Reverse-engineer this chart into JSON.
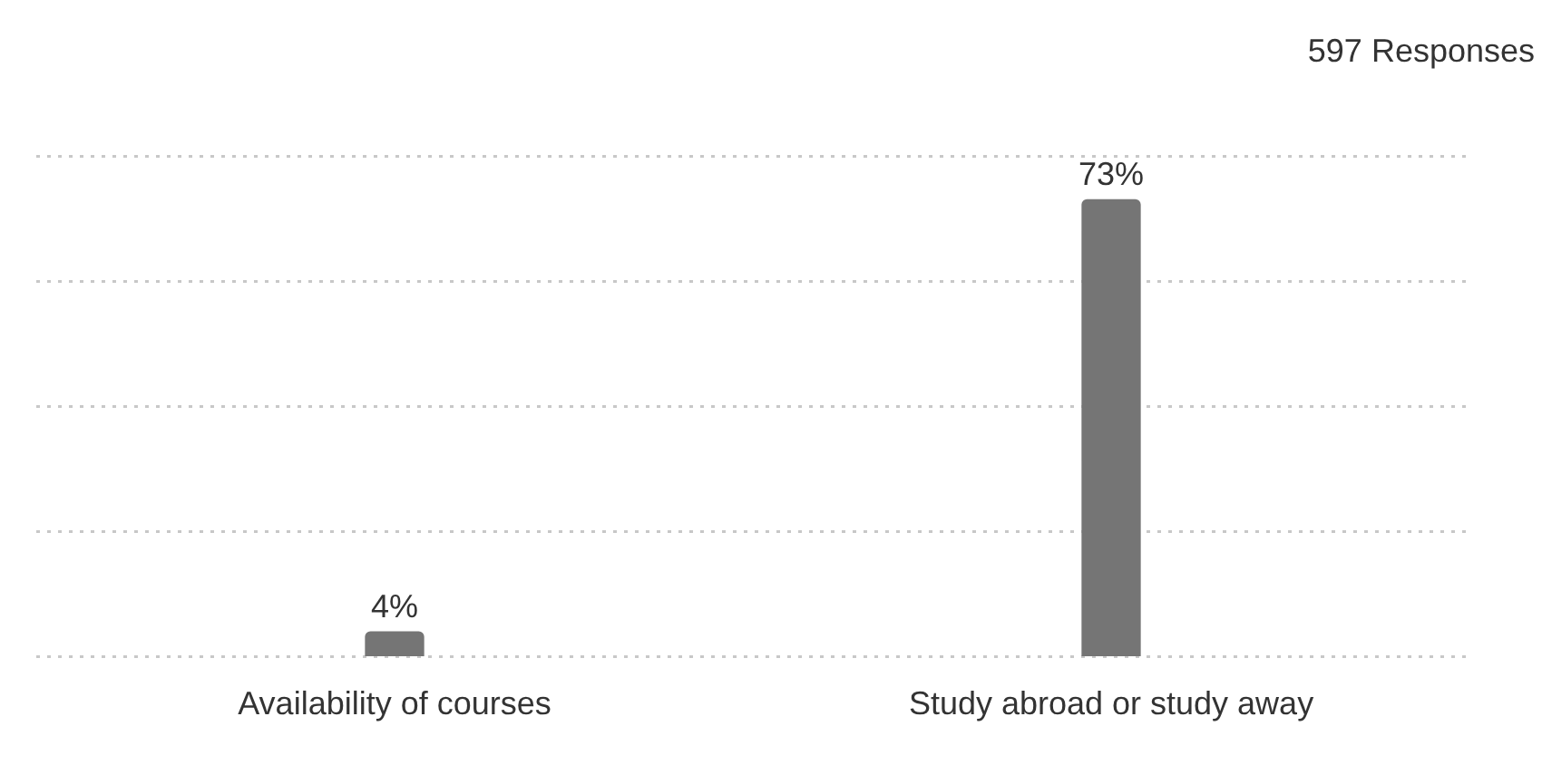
{
  "chart_data": {
    "type": "bar",
    "categories": [
      "Availability of courses",
      "Study abroad or study away"
    ],
    "values": [
      4,
      73
    ],
    "color": "#757575",
    "value_labels": [
      "4%",
      "73%"
    ],
    "ylim": [
      0,
      80
    ],
    "yticks": [
      {
        "value": 0,
        "label": null
      },
      {
        "value": 20,
        "label": null
      },
      {
        "value": 40,
        "label": null
      },
      {
        "value": 60,
        "label": null
      },
      {
        "value": 80,
        "label": null
      }
    ],
    "grid": "y",
    "tick_labels": "x",
    "legend": false,
    "annotations": [
      "597 Responses"
    ]
  }
}
